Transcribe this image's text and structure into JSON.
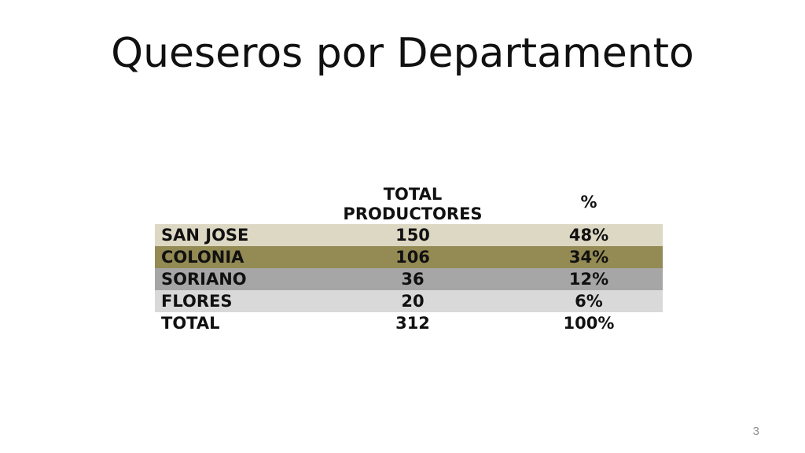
{
  "title": "Queseros por Departamento",
  "table": {
    "headers": {
      "col1": "",
      "col2_line1": "TOTAL",
      "col2_line2": "PRODUCTORES",
      "col3": "%"
    },
    "rows": [
      {
        "name": "SAN JOSE",
        "total": "150",
        "pct": "48%",
        "color": "#ddd8c4"
      },
      {
        "name": "COLONIA",
        "total": "106",
        "pct": "34%",
        "color": "#948a54"
      },
      {
        "name": "SORIANO",
        "total": "36",
        "pct": "12%",
        "color": "#a6a6a6"
      },
      {
        "name": "FLORES",
        "total": "20",
        "pct": "6%",
        "color": "#d9d9d9"
      },
      {
        "name": "TOTAL",
        "total": "312",
        "pct": "100%",
        "color": "#ffffff"
      }
    ]
  },
  "page_number": "3"
}
